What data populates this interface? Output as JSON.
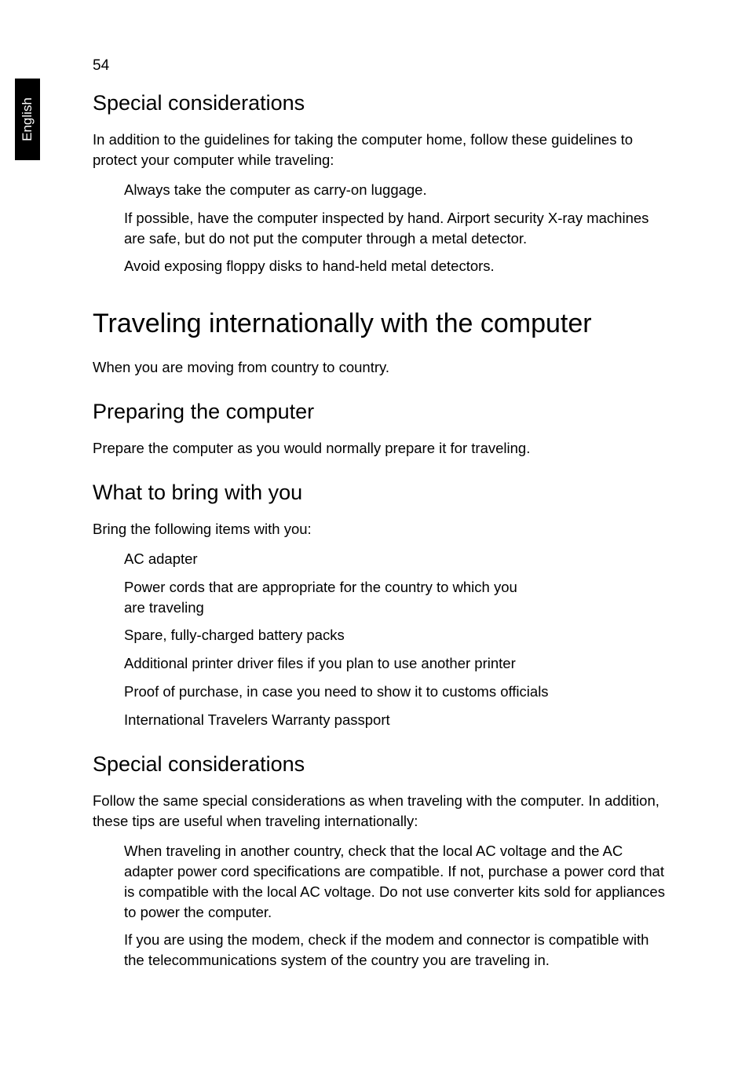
{
  "page": {
    "number": "54",
    "tab_label": "English"
  },
  "sections": {
    "s1": {
      "heading": "Special considerations",
      "intro": "In addition to the guidelines for taking the computer home, follow these guidelines to protect your computer while traveling:",
      "items": [
        "Always take the computer as carry-on luggage.",
        "If possible, have the computer inspected by hand. Airport security X-ray machines are safe, but do not put the computer through a metal detector.",
        "Avoid exposing floppy disks to hand-held metal detectors."
      ]
    },
    "s2": {
      "main_heading": "Traveling internationally with the computer",
      "intro": "When you are moving from country to country."
    },
    "s3": {
      "heading": "Preparing the computer",
      "text": "Prepare the computer as you would normally prepare it for traveling."
    },
    "s4": {
      "heading": "What to bring with you",
      "intro": "Bring the following items with you:",
      "items": [
        "AC adapter",
        "Power cords that are appropriate for the country to which you are traveling",
        "Spare, fully-charged battery packs",
        "Additional printer driver files if you plan to use another printer",
        "Proof of purchase, in case you need to show it to customs officials",
        "International Travelers Warranty passport"
      ]
    },
    "s5": {
      "heading": "Special considerations",
      "intro": "Follow the same special considerations as when traveling with the computer. In addition, these tips are useful when traveling internationally:",
      "items": [
        "When traveling in another country, check that the local AC voltage and the AC adapter power cord specifications are compatible. If not, purchase a power cord that is compatible with the local AC voltage. Do not use converter kits sold for appliances to power the computer.",
        "If you are using the modem, check if the modem and connector is compatible with the telecommunications system of the country you are traveling in."
      ]
    }
  },
  "style": {
    "background": "#ffffff",
    "text_color": "#000000",
    "tab_bg": "#000000",
    "tab_text": "#ffffff",
    "body_fontsize": 18.5,
    "h1_fontsize": 34,
    "h2_fontsize": 27,
    "page_number_fontsize": 19
  }
}
